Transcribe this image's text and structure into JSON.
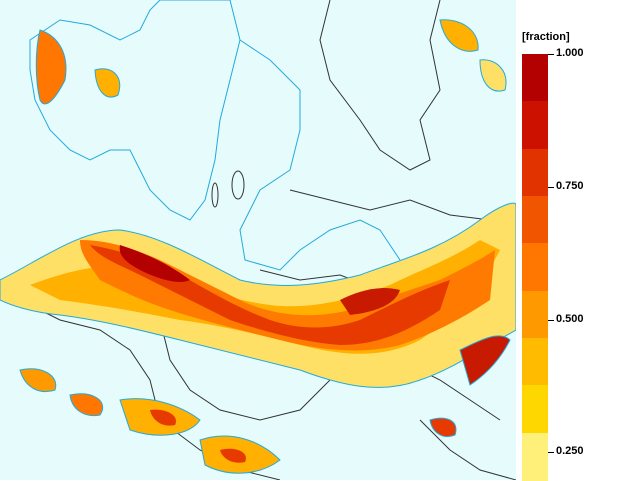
{
  "legend": {
    "title": "[fraction]",
    "labels": [
      "1.000",
      "0.750",
      "0.500",
      "0.250"
    ],
    "swatch_colors": [
      "#b30000",
      "#cc1100",
      "#e03300",
      "#f25500",
      "#ff7700",
      "#ff9900",
      "#ffbb00",
      "#ffd700",
      "#fff07a"
    ]
  },
  "map": {
    "background_color": "#e6fbfb",
    "coastline_color": "#22aadd",
    "border_color": "#333333"
  },
  "icons": [
    "map-image",
    "color-scale-bar"
  ]
}
